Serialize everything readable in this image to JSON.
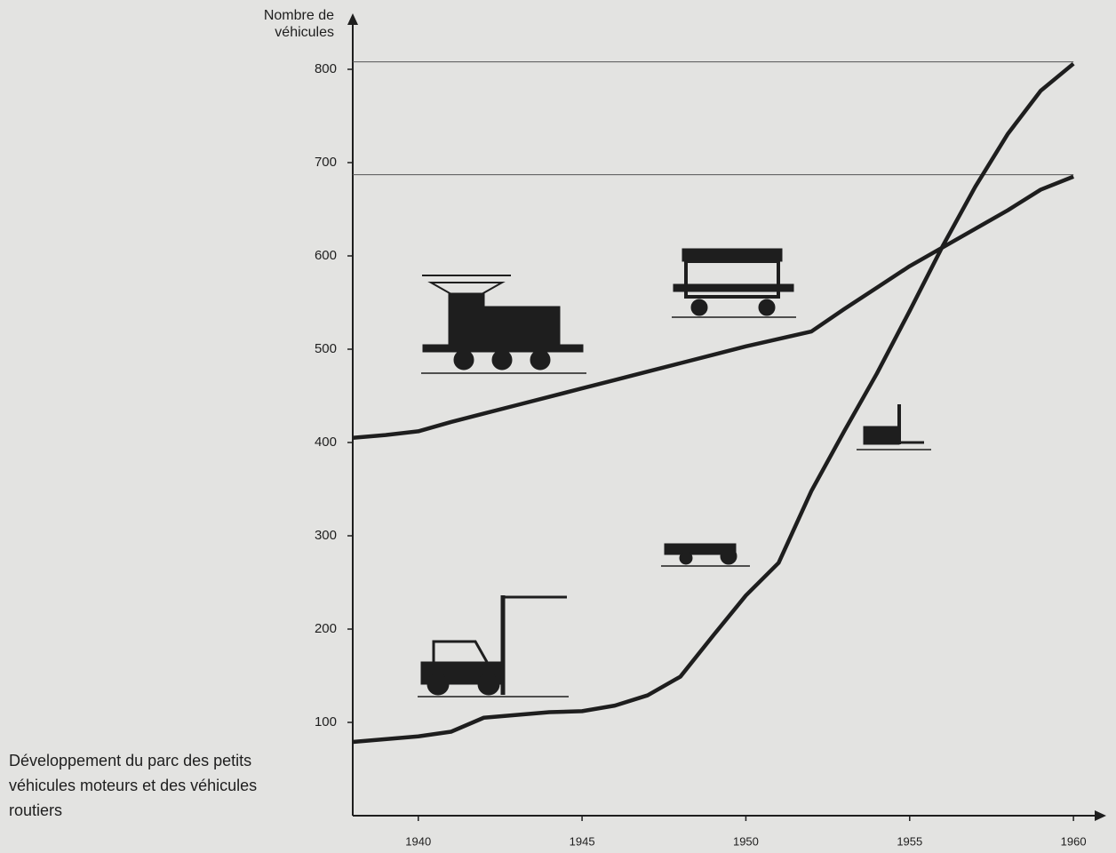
{
  "chart_data": {
    "type": "line",
    "title": "Développement du parc des petits véhicules moteurs et des véhicules routiers",
    "y_label": "Nombre de véhicules",
    "x": [
      1938,
      1939,
      1940,
      1941,
      1942,
      1943,
      1944,
      1945,
      1946,
      1947,
      1948,
      1949,
      1950,
      1951,
      1952,
      1953,
      1954,
      1955,
      1956,
      1957,
      1958,
      1959,
      1960
    ],
    "series": [
      {
        "color": "#1e1e1e",
        "values": [
          405,
          408,
          412,
          422,
          431,
          440,
          449,
          458,
          467,
          476,
          485,
          494,
          503,
          511,
          519,
          543,
          566,
          589,
          609,
          629,
          649,
          671,
          685
        ]
      },
      {
        "color": "#1e1e1e",
        "values": [
          79,
          82,
          85,
          90,
          105,
          108,
          111,
          112,
          118,
          129,
          149,
          193,
          236,
          271,
          348,
          412,
          474,
          541,
          610,
          674,
          731,
          777,
          806
        ]
      }
    ],
    "reference_lines": [
      808,
      687
    ],
    "xlim": [
      1938,
      1961
    ],
    "ylim": [
      0,
      860
    ],
    "xticks": [
      1940,
      1945,
      1950,
      1955,
      1960
    ],
    "yticks": [
      100,
      200,
      300,
      400,
      500,
      600,
      700,
      800
    ]
  }
}
